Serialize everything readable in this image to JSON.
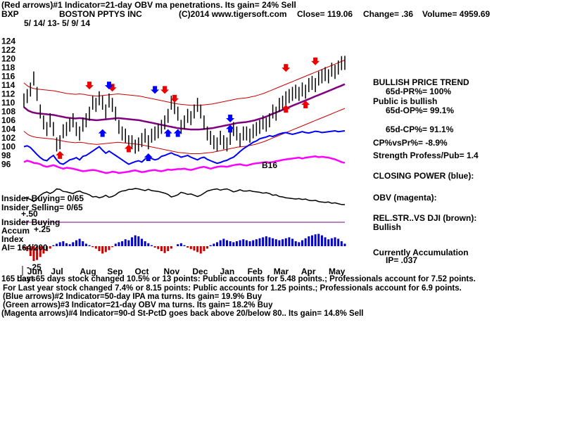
{
  "header": {
    "line1": "(Red arrows)#1 Indicator=21-day OBV ma penetrations. Its gain= 24% Sell",
    "ticker": "BXP",
    "company": "BOSTON PPTYS INC",
    "copyright": "(C)2014 www.tigersoft.com",
    "close": "Close= 119.06",
    "change": "Change= .36",
    "volume": "Volume= 4959.69",
    "date_range": "5/ 14/ 13- 5/ 9/ 14"
  },
  "right_panel": {
    "trend_title": "BULLISH PRICE TREND",
    "pr_pct": "65d-PR%= 100%",
    "public_bullish": "Public is bullish",
    "op_pct": "65d-OP%= 99.1%",
    "cp_pct": "65d-CP%= 91.1%",
    "cp_vs_pr": "CP%vsPr%= -8.9%",
    "strength": "Strength Profess/Pub= 1.4",
    "closing_power": "CLOSING POWER (blue):",
    "obv": "OBV (magenta):",
    "relstr": "REL.STR..VS DJI (brown):",
    "relstr_value": "Bullish",
    "accum_title": "Currently Accumulation",
    "ip": "IP= .037"
  },
  "left_labels": {
    "insider_buying_1": "Insider Buying= 0/65",
    "insider_selling": "Insider Selling= 0/65",
    "plus50": "+.50",
    "insider_buying_2": "Insider Buying",
    "accum": "Accum",
    "plus25": "+.25",
    "index": "Index",
    "ai": "AI= 164/200",
    "minus25": "-.25"
  },
  "annotation_b16": "B16",
  "footer": {
    "line1_prefix": "165 days",
    "line1": "Last 65 days stock changed 10.5% or 13 points: Public accounts for 5.48 points.; Professionals account for 7.52 points.",
    "line2": "For Last year stock changed 7.4% or 8.15 points: Public accounts for 1.25 points.; Professionals account for 6.9 points.",
    "line3": "(Blue arrows)#2 Indicator=50-day IPA ma turns. Its gain= 19.9% Buy",
    "line4": "(Green arrows)#3 Indicator=21-day OBV ma turns. Its gain= 18.2% Buy",
    "line5": "(Magenta arrows)#4 Indicator=90-d St-PctD goes back above 20/below 80.. Its gain= 14.8% Sell"
  },
  "colors": {
    "price": "#000000",
    "band": "#cc0000",
    "ma": "#800080",
    "closing_power": "#0000ff",
    "obv": "#ff00ff",
    "relstr": "#8b2500",
    "accum_pos": "#0000cc",
    "accum_neg": "#cc0000",
    "sell_arrow": "#ee0000",
    "buy_arrow": "#0000ff"
  },
  "chart_data": {
    "type": "line",
    "price_axis": {
      "ylim": [
        94,
        126
      ],
      "ticks": [
        "124",
        "122",
        "120",
        "118",
        "116",
        "114",
        "112",
        "110",
        "108",
        "106",
        "104",
        "102",
        "100",
        "98",
        "96"
      ]
    },
    "months": [
      "Jun",
      "Jul",
      "Aug",
      "Sep",
      "Oct",
      "Nov",
      "Dec",
      "Jan",
      "Feb",
      "Mar",
      "Apr",
      "May"
    ],
    "month_index": [
      8,
      26,
      48,
      69,
      90,
      112,
      134,
      155,
      176,
      196,
      217,
      238
    ],
    "price": [
      110.5,
      111.5,
      113,
      115.5,
      112,
      108,
      105.5,
      104,
      106,
      104,
      100.5,
      101,
      103.5,
      104,
      105,
      106,
      104,
      103,
      105,
      106,
      107.5,
      110,
      109.5,
      111,
      110,
      108,
      110.5,
      109.5,
      107.5,
      104.5,
      103,
      102.5,
      101,
      101,
      100,
      100.5,
      101.5,
      102.5,
      101,
      102.5,
      103,
      103.5,
      104.5,
      105.5,
      107,
      110,
      109,
      107.5,
      104.5,
      105.5,
      107,
      106.5,
      108,
      109.5,
      108,
      105.5,
      103,
      102,
      101,
      100.5,
      102,
      101,
      100.5,
      102,
      104,
      103,
      101.5,
      103,
      103,
      102.5,
      103.5,
      104,
      104.5,
      105.5,
      105,
      106,
      108,
      107.5,
      109.5,
      110,
      111,
      111.5,
      112,
      112.5,
      112,
      113,
      112.5,
      114,
      114.5,
      114,
      115.5,
      116,
      116.5,
      116,
      117.5,
      117,
      118,
      119,
      119.06
    ],
    "closing_power": [
      100,
      100.2,
      99.8,
      99,
      98.2,
      97.5,
      97,
      96.8,
      97.5,
      98,
      97,
      96.2,
      96,
      96.5,
      97,
      97.2,
      97.5,
      97,
      97.8,
      98,
      98.5,
      99,
      99.5,
      100,
      99.2,
      98.5,
      99,
      98.5,
      98,
      97.5,
      97,
      96.5,
      96,
      96.3,
      96.6,
      96.8,
      96.5,
      97.2,
      97.5,
      97.3,
      97,
      97.2,
      97.8,
      98,
      98.3,
      98.6,
      98.2,
      98,
      97.6,
      97.8,
      98,
      97.6,
      97.3,
      97,
      97.4,
      97.6,
      97.1,
      96.8,
      96.5,
      96.2,
      96.4,
      96.7,
      96.9,
      97.3,
      97.6,
      98.2,
      98.9,
      99.5,
      100,
      100.5,
      101,
      101.3,
      101.8,
      102,
      102.2,
      102.5,
      102.3,
      102.6,
      102.9,
      103.1,
      103.2,
      103,
      102.8,
      103,
      103.2,
      103.4,
      103.2,
      103.1,
      103.3,
      103.5,
      103.4,
      103.2,
      103.3,
      103.4,
      103.5,
      103.6,
      103.4,
      103.5,
      103.6
    ],
    "obv": [
      96.5,
      96.8,
      96.6,
      96.3,
      96.2,
      96,
      95.6,
      95.4,
      95.6,
      95.8,
      95.5,
      95.2,
      95,
      95.2,
      95.1,
      95,
      94.8,
      94.6,
      94.4,
      94.5,
      94.6,
      94.7,
      94.6,
      94.4,
      94.2,
      94,
      94.1,
      94.3,
      94.2,
      94,
      94.1,
      94.2,
      94.3,
      94.5,
      94.6,
      94.4,
      94.2,
      94.3,
      94.5,
      94.6,
      94.7,
      94.5,
      94.4,
      94.6,
      94.8,
      94.7,
      94.8,
      94.9,
      94.9,
      95,
      94.8,
      94.7,
      94.9,
      95.1,
      95.3,
      95.4,
      95.2,
      95,
      95.2,
      95.4,
      95.5,
      95.5,
      95.4,
      95.6,
      95.8,
      95.9,
      96,
      95.8,
      95.7,
      95.9,
      96.1,
      96.2,
      96.3,
      96.4,
      96.5,
      96.4,
      96.5,
      96.7,
      96.8,
      97,
      97.1,
      97.2,
      97.3,
      97.4,
      97.5,
      97.3,
      97.5,
      97.6,
      97.7,
      97.8,
      97.6,
      97.7,
      97.6,
      97.5,
      97.3,
      97.1,
      96.8,
      96.5,
      96.3
    ],
    "ma": [
      109,
      108.2,
      107.8,
      107.6,
      107.5,
      107.4,
      107.3,
      107.2,
      107,
      106.8,
      106.6,
      106.5,
      106.4,
      106.5,
      106.4,
      106.2,
      106.1,
      106,
      106.1,
      106.2,
      106.3,
      106.4,
      106.5,
      106.4,
      106.3,
      106.2,
      106.1,
      106,
      105.8,
      105.6,
      105.4,
      105.2,
      105,
      104.8,
      104.6,
      104.4,
      104.2,
      104.1,
      104,
      103.9,
      103.9,
      103.9,
      104,
      104.1,
      104.2,
      104.4,
      104.6,
      104.8,
      105,
      105.2,
      105.4,
      105.5,
      105.6,
      105.8,
      106,
      106.3,
      106.6,
      107,
      107.4,
      107.8,
      108.2,
      108.6,
      109,
      109.4,
      109.8,
      110.2,
      110.6,
      111,
      111.4,
      111.8,
      112.2,
      112.6,
      113,
      113.4,
      113.8,
      114.2
    ],
    "accum": [
      -0.05,
      -0.1,
      -0.2,
      -0.3,
      -0.28,
      -0.22,
      -0.15,
      -0.1,
      -0.05,
      0.02,
      0.05,
      0.08,
      0.1,
      0.06,
      0.04,
      0.08,
      0.12,
      0.15,
      0.1,
      0.05,
      0.02,
      -0.02,
      -0.05,
      -0.1,
      -0.15,
      -0.12,
      -0.08,
      -0.02,
      0.05,
      0.08,
      0.1,
      0.14,
      0.12,
      0.18,
      0.22,
      0.2,
      0.15,
      0.1,
      0.06,
      0.02,
      -0.03,
      -0.06,
      -0.1,
      -0.14,
      -0.1,
      -0.05,
      0.0,
      0.04,
      0.06,
      0.02,
      -0.03,
      -0.06,
      -0.09,
      -0.12,
      -0.15,
      -0.1,
      -0.05,
      0.02,
      0.05,
      0.08,
      0.12,
      0.15,
      0.12,
      0.1,
      0.08,
      0.1,
      0.12,
      0.14,
      0.12,
      0.1,
      0.12,
      0.14,
      0.16,
      0.18,
      0.2,
      0.18,
      0.16,
      0.14,
      0.12,
      0.14,
      0.16,
      0.18,
      0.15,
      0.1,
      0.08,
      0.12,
      0.16,
      0.2,
      0.22,
      0.24,
      0.25,
      0.22,
      0.18,
      0.14,
      0.16,
      0.18,
      0.15,
      0.1,
      0.05
    ]
  }
}
